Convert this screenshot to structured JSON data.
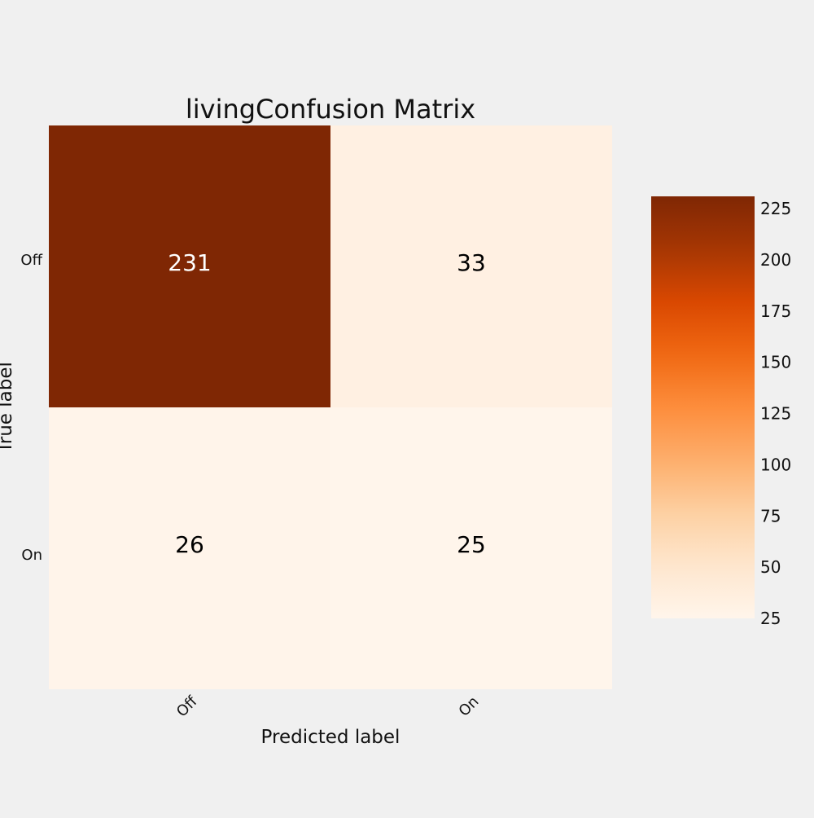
{
  "chart_data": {
    "type": "heatmap",
    "title": "livingConfusion Matrix",
    "xlabel": "Predicted label",
    "ylabel": "True label",
    "x_categories": [
      "Off",
      "On"
    ],
    "y_categories": [
      "Off",
      "On"
    ],
    "matrix": [
      [
        231,
        33
      ],
      [
        26,
        25
      ]
    ],
    "colormap": "Oranges",
    "colorbar": {
      "range": [
        25,
        231
      ],
      "ticks": [
        25,
        50,
        75,
        100,
        125,
        150,
        175,
        200,
        225
      ]
    },
    "grid": false
  }
}
